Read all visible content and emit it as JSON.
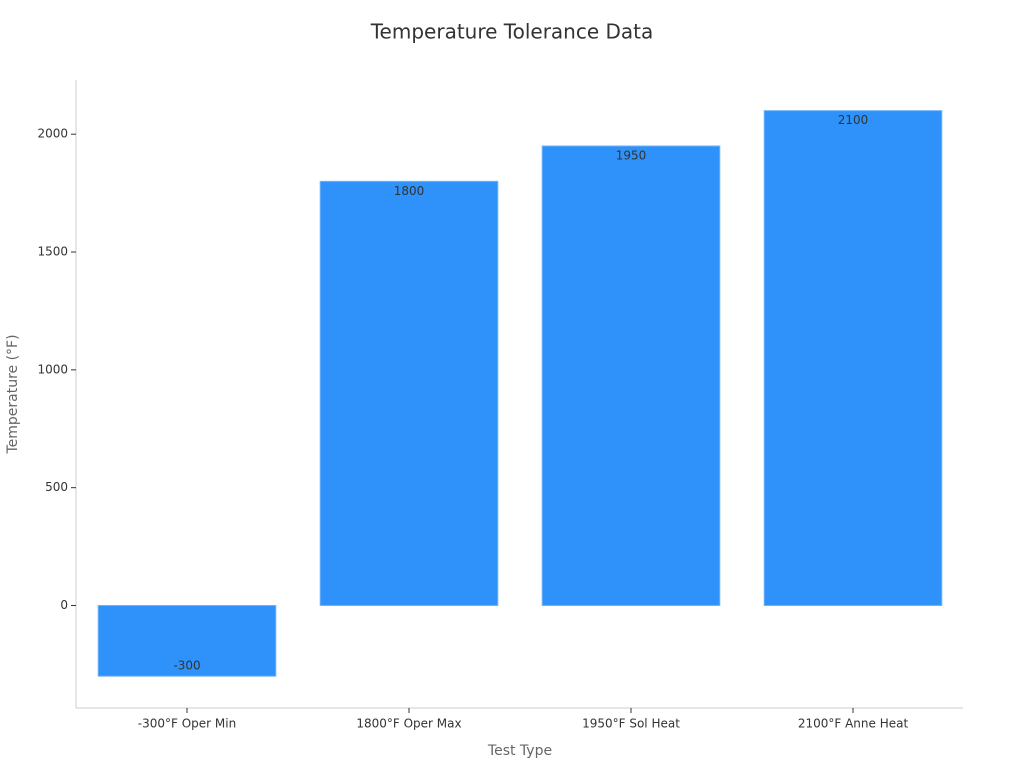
{
  "chart_data": {
    "type": "bar",
    "title": "Temperature Tolerance Data",
    "x_label": "Test Type",
    "y_label": "Temperature (°F)",
    "categories": [
      "-300°F Oper Min",
      "1800°F Oper Max",
      "1950°F Sol Heat",
      "2100°F Anne Heat"
    ],
    "values": [
      -300,
      1800,
      1950,
      2100
    ],
    "color": "#2f92fa",
    "ylim": [
      -435,
      2230
    ],
    "yticks": [
      0,
      500,
      1000,
      1500,
      2000
    ],
    "grid": false
  }
}
